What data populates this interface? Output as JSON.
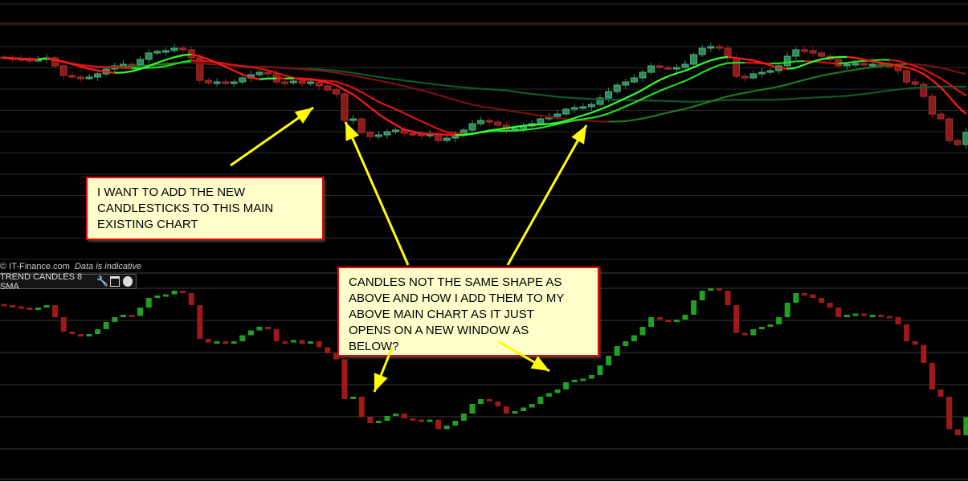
{
  "chart_data": [
    {
      "type": "candlestick",
      "panel": "main",
      "closes": [
        128,
        127,
        126,
        125,
        126,
        128,
        118,
        106,
        104,
        103,
        104,
        108,
        114,
        118,
        120,
        119,
        126,
        134,
        136,
        137,
        140,
        138,
        128,
        100,
        97,
        98,
        97,
        98,
        103,
        107,
        110,
        108,
        98,
        97,
        99,
        96,
        98,
        93,
        88,
        83,
        50,
        52,
        35,
        30,
        32,
        36,
        38,
        34,
        33,
        31,
        33,
        25,
        28,
        32,
        38,
        46,
        50,
        48,
        44,
        38,
        40,
        43,
        46,
        52,
        55,
        58,
        64,
        66,
        67,
        70,
        78,
        86,
        94,
        98,
        103,
        110,
        118,
        116,
        115,
        116,
        120,
        132,
        140,
        142,
        140,
        128,
        105,
        103,
        108,
        110,
        112,
        118,
        130,
        138,
        137,
        134,
        130,
        126,
        118,
        120,
        121,
        120,
        120,
        119,
        118,
        112,
        98,
        95,
        80,
        58,
        52,
        25,
        20,
        35
      ],
      "overlays": [
        {
          "kind": "sma",
          "period": 8,
          "colors": {
            "up": "#33ff33",
            "down": "#ff1a1a"
          }
        },
        {
          "kind": "sma",
          "period": 13,
          "colors": {
            "up": "#22dd22",
            "down": "#e01010"
          }
        },
        {
          "kind": "sma",
          "period": 34,
          "colors": {
            "up": "#1f7a1f",
            "down": "#7a1010"
          }
        },
        {
          "kind": "sma",
          "period": 60,
          "colors": {
            "up": "#0f5a2a",
            "down": "#0f5a2a"
          }
        }
      ],
      "colors": {
        "up": "#2e8b57",
        "down": "#8b1a1a",
        "grid": "#2a2a2a"
      },
      "grid": true
    },
    {
      "type": "candlestick",
      "panel": "indicator",
      "title": "TREND CANDLES 8 SMA",
      "style": "body-only",
      "colors": {
        "up": "#22a022",
        "down": "#a01818",
        "grid": "#3a3a3a"
      },
      "grid": true
    }
  ],
  "footer": {
    "copyright": "© IT-Finance.com",
    "disclaimer": "Data is indicative"
  },
  "panel_tab": {
    "title": "TREND CANDLES 8 SMA",
    "icons": [
      "wrench-icon",
      "maximize-icon",
      "close-icon"
    ]
  },
  "annotations": {
    "note1": "I WANT TO ADD THE NEW\nCANDLESTICKS TO THIS MAIN\nEXISTING CHART",
    "note2": "CANDLES NOT THE SAME SHAPE AS\nABOVE AND HOW I ADD THEM TO MY\nABOVE MAIN CHART AS IT JUST\nOPENS ON A NEW WINDOW AS\nBELOW?",
    "arrow_color": "#ffff00"
  }
}
